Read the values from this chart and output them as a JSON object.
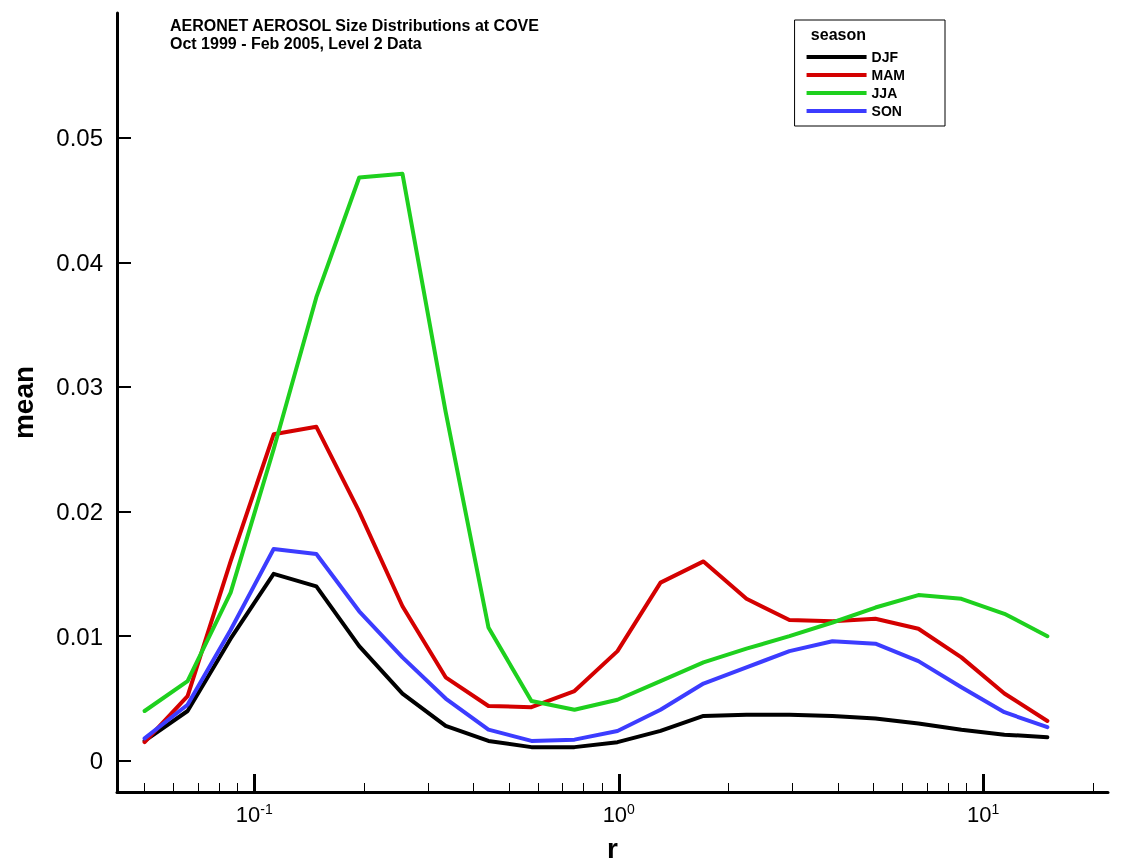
{
  "chart_data": {
    "type": "line",
    "title": "AERONET AEROSOL Size Distributions at COVE",
    "subtitle": "Oct 1999 - Feb 2005, Level 2 Data",
    "xlabel": "r",
    "ylabel": "mean",
    "legend_title": "season",
    "legend": "top right",
    "log": "x",
    "grid": false,
    "marker": "none",
    "line_style": "solid",
    "x": [
      0.05,
      0.0656,
      0.0861,
      0.113,
      0.148,
      0.194,
      0.255,
      0.335,
      0.439,
      0.576,
      0.756,
      0.992,
      1.302,
      1.708,
      2.241,
      2.94,
      3.858,
      5.061,
      6.641,
      8.713,
      11.432,
      15.0
    ],
    "xlim": [
      0.042,
      22
    ],
    "xticks": [
      {
        "value": 0.1,
        "label": "10$^{-1}$"
      },
      {
        "value": 1,
        "label": "10$^{0}$"
      },
      {
        "value": 10,
        "label": "10$^{1}$"
      }
    ],
    "ylim": [
      -0.0025,
      0.06
    ],
    "yticks": [
      0,
      0.01,
      0.02,
      0.03,
      0.04,
      0.05
    ],
    "series": [
      {
        "name": "DJF",
        "color": "#000000",
        "values": [
          0.0016,
          0.004,
          0.0098,
          0.015,
          0.014,
          0.0092,
          0.0054,
          0.0028,
          0.0016,
          0.0011,
          0.0011,
          0.0015,
          0.0024,
          0.0036,
          0.0037,
          0.0037,
          0.0036,
          0.0034,
          0.003,
          0.0025,
          0.0021,
          0.0019
        ]
      },
      {
        "name": "MAM",
        "color": "#d40000",
        "values": [
          0.0015,
          0.0052,
          0.016,
          0.0262,
          0.0268,
          0.02,
          0.0124,
          0.0067,
          0.0044,
          0.0043,
          0.0056,
          0.0088,
          0.0143,
          0.016,
          0.013,
          0.0113,
          0.0112,
          0.0114,
          0.0106,
          0.0083,
          0.0054,
          0.0032
        ]
      },
      {
        "name": "JJA",
        "color": "#1ed01e",
        "values": [
          0.004,
          0.0064,
          0.0135,
          0.025,
          0.0372,
          0.0468,
          0.0471,
          0.028,
          0.0107,
          0.0048,
          0.0041,
          0.0049,
          0.0064,
          0.0079,
          0.009,
          0.01,
          0.0111,
          0.0123,
          0.0133,
          0.013,
          0.0118,
          0.01
        ]
      },
      {
        "name": "SON",
        "color": "#3c3cff",
        "values": [
          0.0018,
          0.0045,
          0.0105,
          0.017,
          0.0166,
          0.012,
          0.0083,
          0.005,
          0.0025,
          0.0016,
          0.0017,
          0.0024,
          0.0041,
          0.0062,
          0.0075,
          0.0088,
          0.0096,
          0.0094,
          0.008,
          0.0059,
          0.0039,
          0.0027
        ]
      }
    ]
  }
}
